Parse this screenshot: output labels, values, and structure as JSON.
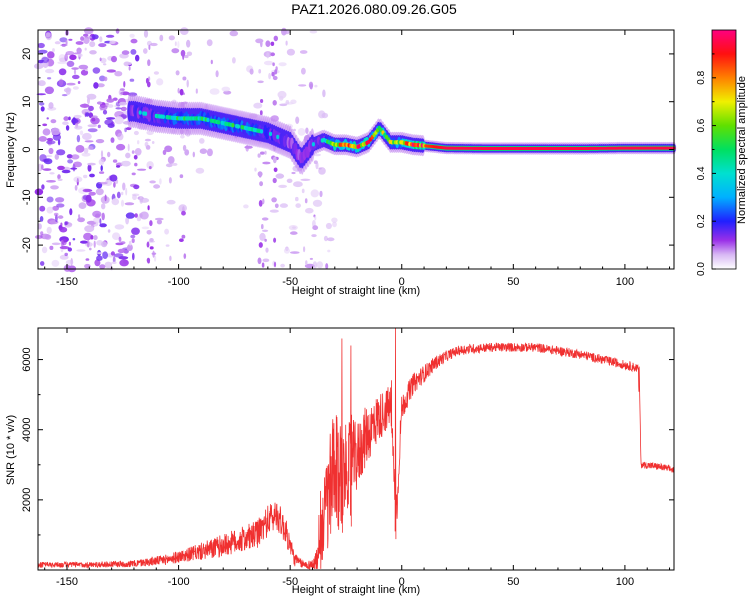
{
  "title": "PAZ1.2026.080.09.26.G05",
  "colors": {
    "snr_line": "#f03030",
    "axis": "#000000",
    "background": "#ffffff"
  },
  "chart_data": [
    {
      "type": "heatmap",
      "xlabel": "Height of straight line (km)",
      "ylabel": "Frequency (Hz)",
      "xlim": [
        -163,
        122
      ],
      "ylim": [
        -25,
        25
      ],
      "x_ticks": [
        -150,
        -100,
        -50,
        0,
        50,
        100
      ],
      "y_ticks": [
        -20,
        -10,
        0,
        10,
        20
      ],
      "colorbar": {
        "label": "Normalized spectral amplitude",
        "range": [
          0,
          1
        ],
        "ticks": [
          0.0,
          0.2,
          0.4,
          0.6,
          0.8
        ]
      },
      "ridge": {
        "description_points_x": [
          -120,
          -110,
          -100,
          -90,
          -80,
          -70,
          -60,
          -50,
          -45,
          -40,
          -35,
          -30,
          -25,
          -20,
          -15,
          -10,
          -5,
          0,
          5,
          10,
          20,
          40,
          60,
          80,
          100,
          122
        ],
        "frequency": [
          8,
          7,
          6.5,
          6.5,
          5.5,
          4.5,
          3.5,
          1.5,
          -2,
          1,
          2,
          1,
          1,
          0.5,
          1.5,
          4.5,
          1.5,
          1.5,
          1,
          0.8,
          0.3,
          0.2,
          0.2,
          0.2,
          0.3,
          0.3
        ],
        "amplitude": [
          0.3,
          0.35,
          0.45,
          0.45,
          0.45,
          0.45,
          0.35,
          0.25,
          0.25,
          0.3,
          0.35,
          0.7,
          0.75,
          0.8,
          0.8,
          0.6,
          0.6,
          0.6,
          0.9,
          0.85,
          0.95,
          0.95,
          0.95,
          0.95,
          0.95,
          0.95
        ]
      }
    },
    {
      "type": "line",
      "xlabel": "Height of straight line (km)",
      "ylabel": "SNR (10 * v/v)",
      "xlim": [
        -163,
        122
      ],
      "ylim": [
        0,
        6900
      ],
      "x_ticks": [
        -150,
        -100,
        -50,
        0,
        50,
        100
      ],
      "y_ticks": [
        2000,
        4000,
        6000
      ],
      "series": [
        {
          "name": "SNR",
          "x": [
            -163,
            -140,
            -120,
            -105,
            -95,
            -85,
            -75,
            -65,
            -60,
            -56,
            -52,
            -48,
            -44,
            -40,
            -37,
            -34,
            -32,
            -30,
            -28,
            -26,
            -24,
            -22,
            -20,
            -17,
            -14,
            -11,
            -8,
            -5,
            -3,
            -2,
            -1,
            0,
            2,
            5,
            10,
            15,
            20,
            25,
            30,
            40,
            50,
            60,
            70,
            80,
            90,
            100,
            106,
            107,
            108,
            115,
            122
          ],
          "y": [
            150,
            150,
            180,
            300,
            450,
            600,
            800,
            1000,
            1400,
            1600,
            1100,
            300,
            150,
            150,
            350,
            1800,
            2200,
            2800,
            2500,
            2800,
            3000,
            3200,
            3200,
            3700,
            4000,
            4300,
            4500,
            4700,
            2200,
            1700,
            3500,
            4600,
            4900,
            5300,
            5600,
            5900,
            6100,
            6250,
            6300,
            6350,
            6350,
            6350,
            6250,
            6150,
            6000,
            5850,
            5750,
            3000,
            3000,
            2950,
            2850
          ],
          "noise": [
            80,
            80,
            100,
            150,
            200,
            300,
            350,
            400,
            450,
            450,
            400,
            200,
            100,
            150,
            600,
            1400,
            1800,
            1800,
            1600,
            1300,
            1200,
            1100,
            1000,
            900,
            800,
            700,
            650,
            600,
            500,
            300,
            500,
            400,
            350,
            300,
            250,
            200,
            160,
            140,
            140,
            130,
            130,
            130,
            130,
            130,
            130,
            130,
            130,
            100,
            100,
            100,
            100
          ]
        }
      ],
      "spikes": [
        {
          "x": -27,
          "y": 6600
        },
        {
          "x": -23,
          "y": 6400
        },
        {
          "x": -3,
          "y": 6900
        }
      ]
    }
  ]
}
